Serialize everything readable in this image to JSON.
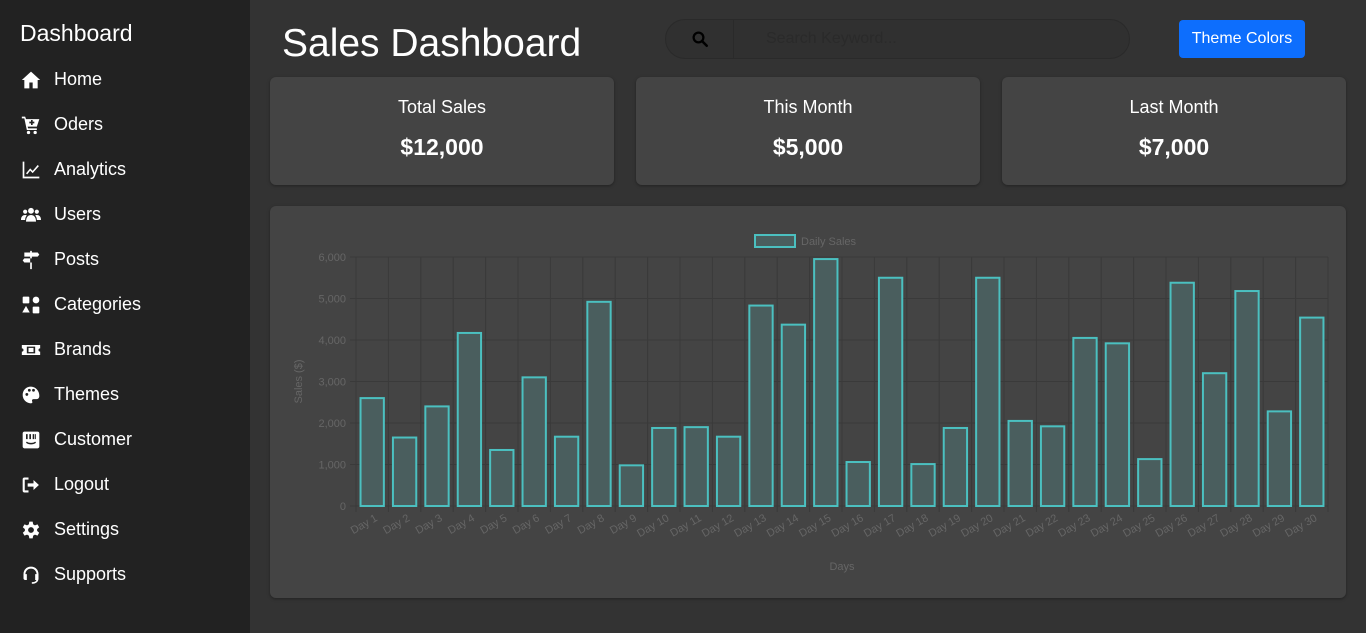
{
  "sidebar": {
    "title": "Dashboard",
    "items": [
      {
        "label": "Home",
        "icon": "home-icon"
      },
      {
        "label": "Oders",
        "icon": "cart-icon"
      },
      {
        "label": "Analytics",
        "icon": "chart-line-icon"
      },
      {
        "label": "Users",
        "icon": "users-icon"
      },
      {
        "label": "Posts",
        "icon": "signpost-icon"
      },
      {
        "label": "Categories",
        "icon": "categories-icon"
      },
      {
        "label": "Brands",
        "icon": "ticket-icon"
      },
      {
        "label": "Themes",
        "icon": "palette-icon"
      },
      {
        "label": "Customer",
        "icon": "customer-icon"
      },
      {
        "label": "Logout",
        "icon": "logout-icon"
      },
      {
        "label": "Settings",
        "icon": "gear-icon"
      },
      {
        "label": "Supports",
        "icon": "headset-icon"
      }
    ]
  },
  "header": {
    "title": "Sales Dashboard",
    "search_placeholder": "Search Keyword...",
    "theme_button": "Theme Colors"
  },
  "cards": [
    {
      "label": "Total Sales",
      "value": "$12,000"
    },
    {
      "label": "This Month",
      "value": "$5,000"
    },
    {
      "label": "Last Month",
      "value": "$7,000"
    }
  ],
  "colors": {
    "accent": "#0d6efd",
    "bar_border": "#4bc0c0",
    "bar_fill": "#4a5e5e"
  },
  "chart_data": {
    "type": "bar",
    "legend": "Daily Sales",
    "legend_position": "top",
    "xlabel": "Days",
    "ylabel": "Sales ($)",
    "ylim": [
      0,
      6000
    ],
    "yticks": [
      0,
      1000,
      2000,
      3000,
      4000,
      5000,
      6000
    ],
    "ytick_labels": [
      "0",
      "1,000",
      "2,000",
      "3,000",
      "4,000",
      "5,000",
      "6,000"
    ],
    "grid": true,
    "categories": [
      "Day 1",
      "Day 2",
      "Day 3",
      "Day 4",
      "Day 5",
      "Day 6",
      "Day 7",
      "Day 8",
      "Day 9",
      "Day 10",
      "Day 11",
      "Day 12",
      "Day 13",
      "Day 14",
      "Day 15",
      "Day 16",
      "Day 17",
      "Day 18",
      "Day 19",
      "Day 20",
      "Day 21",
      "Day 22",
      "Day 23",
      "Day 24",
      "Day 25",
      "Day 26",
      "Day 27",
      "Day 28",
      "Day 29",
      "Day 30"
    ],
    "series": [
      {
        "name": "Daily Sales",
        "values": [
          2600,
          1650,
          2400,
          4170,
          1350,
          3100,
          1670,
          4920,
          980,
          1880,
          1900,
          1670,
          4830,
          4370,
          5950,
          1060,
          5500,
          1010,
          1880,
          5500,
          2050,
          1920,
          4050,
          3920,
          1130,
          5380,
          3200,
          5180,
          2280,
          4540
        ]
      }
    ]
  }
}
